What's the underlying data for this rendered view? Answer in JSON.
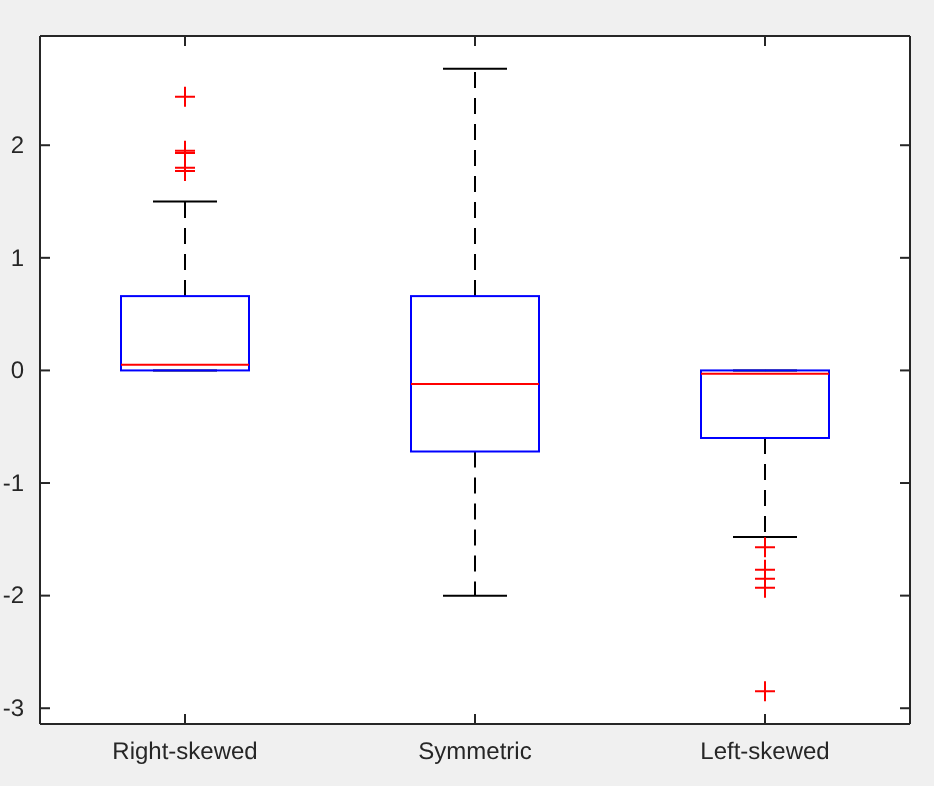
{
  "chart_data": {
    "type": "box",
    "categories": [
      "Right-skewed",
      "Symmetric",
      "Left-skewed"
    ],
    "color": "#0000ff",
    "boxes": [
      {
        "low": 0.0,
        "q1": 0.0,
        "median": 0.05,
        "q3": 0.66,
        "high": 1.5,
        "outliers": [
          2.43,
          1.95,
          1.93,
          1.8,
          1.77
        ]
      },
      {
        "low": -2.0,
        "q1": -0.72,
        "median": -0.12,
        "q3": 0.66,
        "high": 2.68
      },
      {
        "low": -1.48,
        "q1": -0.6,
        "median": -0.03,
        "q3": 0.0,
        "high": 0.0,
        "outliers": [
          -1.57,
          -1.77,
          -1.85,
          -1.93,
          -2.85
        ]
      }
    ],
    "ylim": [
      -3.14,
      2.97
    ],
    "yticks": [
      -3,
      -2,
      -1,
      0,
      1,
      2
    ],
    "grid": false
  }
}
